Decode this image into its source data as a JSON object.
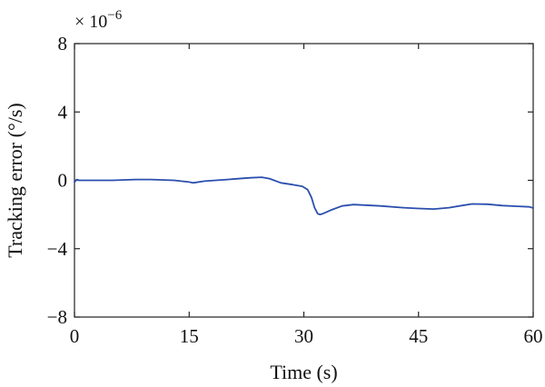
{
  "chart_data": {
    "type": "line",
    "title": "",
    "xlabel": "Time (s)",
    "ylabel": "Tracking error (°/s)",
    "y_multiplier_label": "× 10",
    "y_multiplier_exponent": "−6",
    "xlim": [
      0,
      60
    ],
    "ylim": [
      -8,
      8
    ],
    "x_ticks": [
      0,
      15,
      30,
      45,
      60
    ],
    "x_tick_labels": [
      "0",
      "15",
      "30",
      "45",
      "60"
    ],
    "y_ticks": [
      8,
      4,
      0,
      -4,
      -8
    ],
    "y_tick_labels": [
      "8",
      "4",
      "0",
      "−4",
      "−8"
    ],
    "grid": false,
    "series": [
      {
        "color": "#2b4fae",
        "x": [
          0,
          0.3,
          0.6,
          2,
          5,
          8,
          10,
          13,
          15,
          15.5,
          17,
          20,
          23,
          24.5,
          25.5,
          27,
          28.5,
          29.8,
          30.5,
          31,
          31.4,
          31.8,
          32.1,
          32.5,
          33.5,
          35,
          36.5,
          38,
          40,
          43,
          45,
          47,
          49,
          51,
          52,
          54,
          56,
          58,
          59.5,
          60
        ],
        "y": [
          -0.1,
          0.05,
          0,
          0,
          0,
          0.05,
          0.05,
          0,
          -0.1,
          -0.15,
          -0.05,
          0.05,
          0.15,
          0.18,
          0.1,
          -0.15,
          -0.25,
          -0.35,
          -0.55,
          -1.0,
          -1.6,
          -1.95,
          -2.0,
          -1.95,
          -1.75,
          -1.5,
          -1.42,
          -1.45,
          -1.5,
          -1.6,
          -1.65,
          -1.68,
          -1.6,
          -1.45,
          -1.38,
          -1.4,
          -1.48,
          -1.52,
          -1.55,
          -1.62
        ]
      }
    ]
  }
}
